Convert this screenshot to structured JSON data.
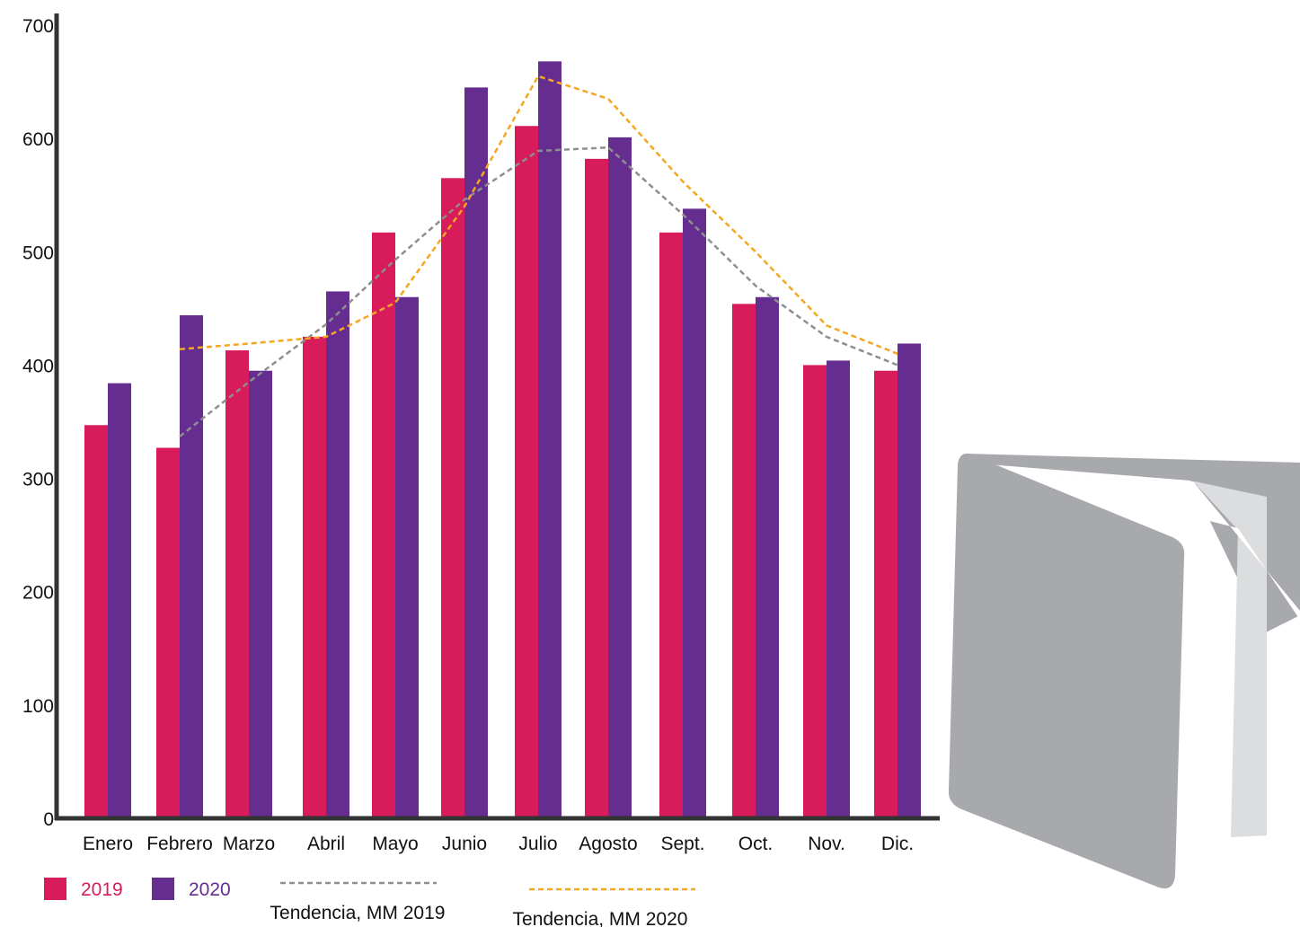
{
  "chart_data": {
    "type": "bar",
    "categories": [
      "Enero",
      "Febrero",
      "Marzo",
      "Abril",
      "Mayo",
      "Junio",
      "Julio",
      "Agosto",
      "Sept.",
      "Oct.",
      "Nov.",
      "Dic."
    ],
    "series": [
      {
        "name": "2019",
        "values": [
          347,
          327,
          413,
          425,
          517,
          565,
          611,
          582,
          517,
          454,
          400,
          395
        ],
        "color": "#d81b5a"
      },
      {
        "name": "2020",
        "values": [
          384,
          444,
          395,
          465,
          460,
          645,
          668,
          601,
          538,
          460,
          404,
          419
        ],
        "color": "#662d91"
      }
    ],
    "trends": [
      {
        "name": "Tendencia, MM 2019",
        "color": "#8e8e8e",
        "values": [
          null,
          337,
          385,
          436,
          493,
          546,
          589,
          592,
          533,
          470,
          425,
          400
        ]
      },
      {
        "name": "Tendencia, MM 2020",
        "color": "#f5a623",
        "values": [
          null,
          414,
          419,
          425,
          455,
          540,
          655,
          635,
          562,
          500,
          435,
          410
        ]
      }
    ],
    "y_ticks": [
      0,
      100,
      200,
      300,
      400,
      500,
      600,
      700
    ],
    "ylim": [
      0,
      700
    ],
    "title": "",
    "xlabel": "",
    "ylabel": "",
    "grid": false,
    "legend_position": "bottom-left"
  },
  "decoration": {
    "icon": "ballot-box-icon"
  }
}
